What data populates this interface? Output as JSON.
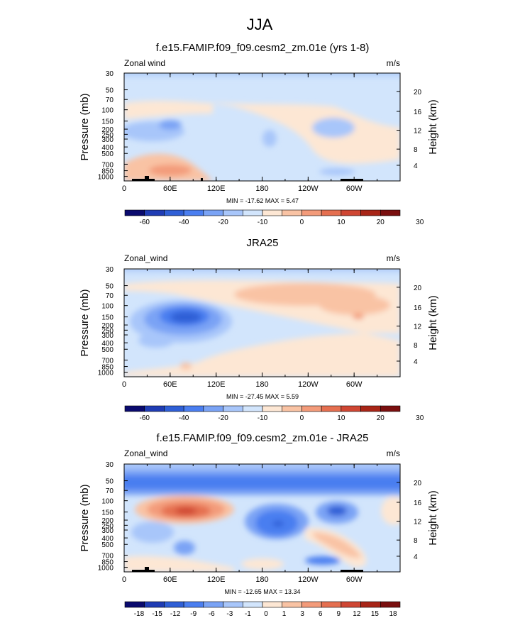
{
  "page_title": "JJA",
  "colors": {
    "ramp_main": [
      "#0a0a6e",
      "#1f3cb4",
      "#2f5fd6",
      "#4a7ef0",
      "#7aa3f5",
      "#a8c6fa",
      "#d2e5fc",
      "#fde7d4",
      "#f9c3a4",
      "#f39b7a",
      "#e56f50",
      "#cf4633",
      "#a82517",
      "#7a0f0f"
    ],
    "ramp_diff": [
      "#0a0a6e",
      "#1f3cb4",
      "#2f5fd6",
      "#4a7ef0",
      "#7aa3f5",
      "#a8c6fa",
      "#d2e5fc",
      "#fde7d4",
      "#f9c3a4",
      "#f39b7a",
      "#e56f50",
      "#cf4633",
      "#a82517",
      "#7a0f0f"
    ]
  },
  "chart_data": [
    {
      "type": "heatmap",
      "title": "f.e15.FAMIP.f09_f09.cesm2_zm.01e (yrs 1-8)",
      "left_label": "Zonal wind",
      "units": "m/s",
      "ylabel": "Pressure (mb)",
      "ylabel_right": "Height (km)",
      "x_ticks": [
        "0",
        "60E",
        "120E",
        "180",
        "120W",
        "60W"
      ],
      "x_range": [
        0,
        360
      ],
      "pressure_ticks": [
        "30",
        "50",
        "70",
        "100",
        "150",
        "200",
        "250",
        "300",
        "400",
        "500",
        "700",
        "850",
        "1000"
      ],
      "height_ticks": [
        "20",
        "16",
        "12",
        "8",
        "4"
      ],
      "min_max": "MIN = -17.62  MAX =  5.47",
      "min": -17.62,
      "max": 5.47,
      "colorbar_labels": [
        "-60",
        "-40",
        "-20",
        "-10",
        "0",
        "10",
        "20",
        "30"
      ]
    },
    {
      "type": "heatmap",
      "title": "JRA25",
      "left_label": "Zonal_wind",
      "units": "m/s",
      "ylabel": "Pressure (mb)",
      "ylabel_right": "Height (km)",
      "x_ticks": [
        "0",
        "60E",
        "120E",
        "180",
        "120W",
        "60W"
      ],
      "x_range": [
        0,
        360
      ],
      "pressure_ticks": [
        "30",
        "50",
        "70",
        "100",
        "150",
        "200",
        "250",
        "300",
        "400",
        "500",
        "700",
        "850",
        "1000"
      ],
      "height_ticks": [
        "20",
        "16",
        "12",
        "8",
        "4"
      ],
      "min_max": "MIN = -27.45  MAX =  5.59",
      "min": -27.45,
      "max": 5.59,
      "colorbar_labels": [
        "-60",
        "-40",
        "-20",
        "-10",
        "0",
        "10",
        "20",
        "30"
      ]
    },
    {
      "type": "heatmap",
      "title": "f.e15.FAMIP.f09_f09.cesm2_zm.01e - JRA25",
      "left_label": "Zonal_wind",
      "units": "m/s",
      "ylabel": "Pressure (mb)",
      "ylabel_right": "Height (km)",
      "x_ticks": [
        "0",
        "60E",
        "120E",
        "180",
        "120W",
        "60W"
      ],
      "x_range": [
        0,
        360
      ],
      "pressure_ticks": [
        "30",
        "50",
        "70",
        "100",
        "150",
        "200",
        "250",
        "300",
        "400",
        "500",
        "700",
        "850",
        "1000"
      ],
      "height_ticks": [
        "20",
        "16",
        "12",
        "8",
        "4"
      ],
      "min_max": "MIN = -12.65  MAX = 13.34",
      "min": -12.65,
      "max": 13.34,
      "colorbar_labels": [
        "-18",
        "-15",
        "-12",
        "-9",
        "-6",
        "-3",
        "-1",
        "0",
        "1",
        "3",
        "6",
        "9",
        "12",
        "15",
        "18"
      ]
    }
  ]
}
